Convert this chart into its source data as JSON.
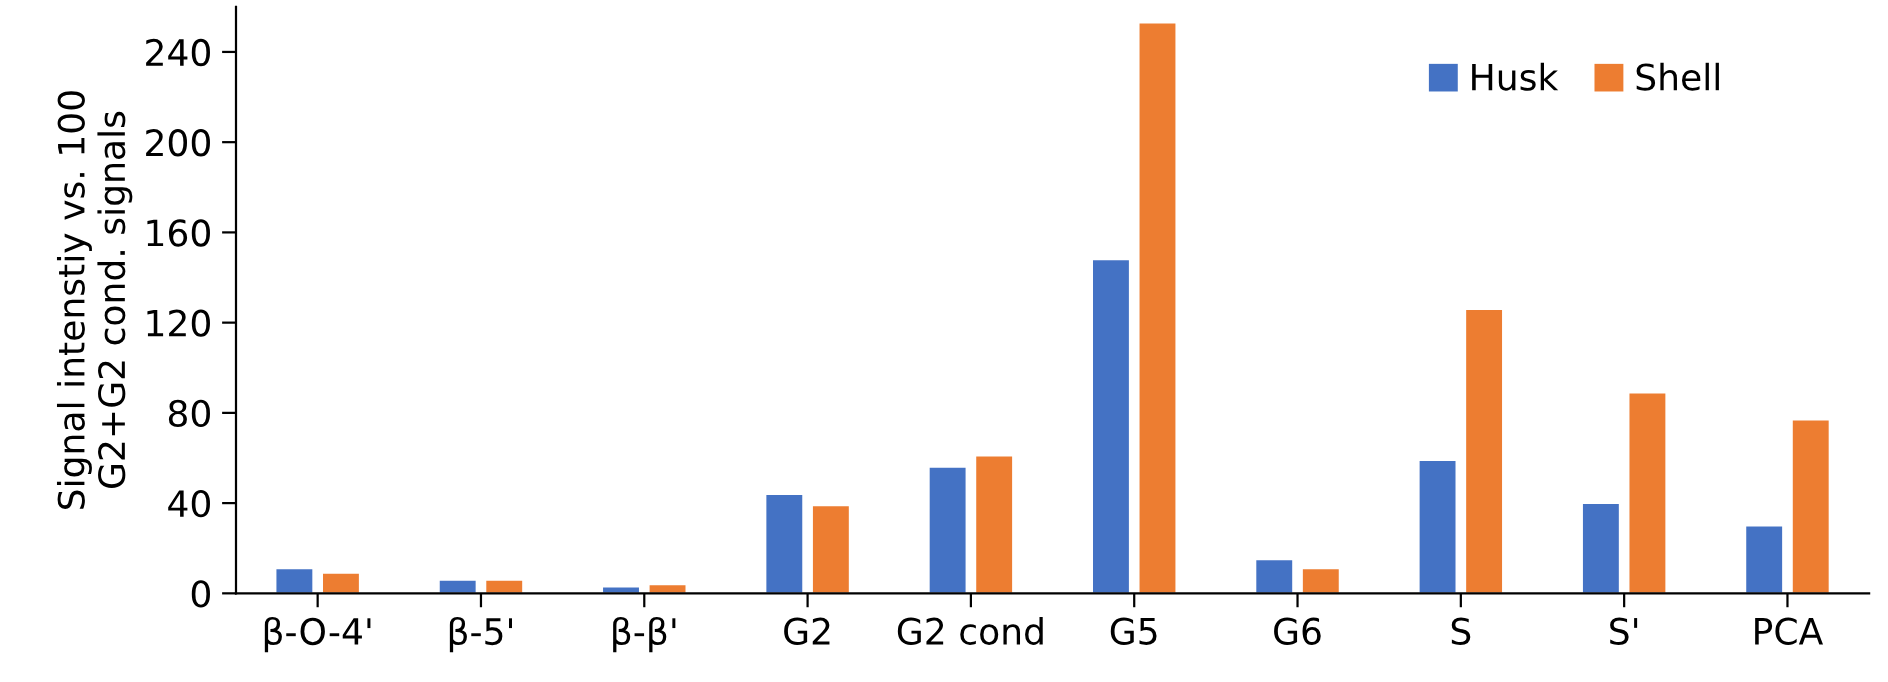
{
  "chart_data": {
    "type": "bar",
    "ylabel": "Signal intenstiy vs. 100\nG2+G2 cond. signals",
    "categories": [
      "β-O-4'",
      "β-5'",
      "β-β'",
      "G2",
      "G2 cond",
      "G5",
      "G6",
      "S",
      "S'",
      "PCA"
    ],
    "series": [
      {
        "name": "Husk",
        "color": "#4472c4",
        "values": [
          11,
          6,
          3,
          44,
          56,
          148,
          15,
          59,
          40,
          30
        ]
      },
      {
        "name": "Shell",
        "color": "#ed7d31",
        "values": [
          9,
          6,
          4,
          39,
          61,
          253,
          11,
          126,
          89,
          77
        ]
      }
    ],
    "ylim": [
      0,
      260
    ],
    "yticks": [
      0,
      40,
      80,
      120,
      160,
      200,
      240
    ],
    "grid": false,
    "legend": "top right"
  }
}
